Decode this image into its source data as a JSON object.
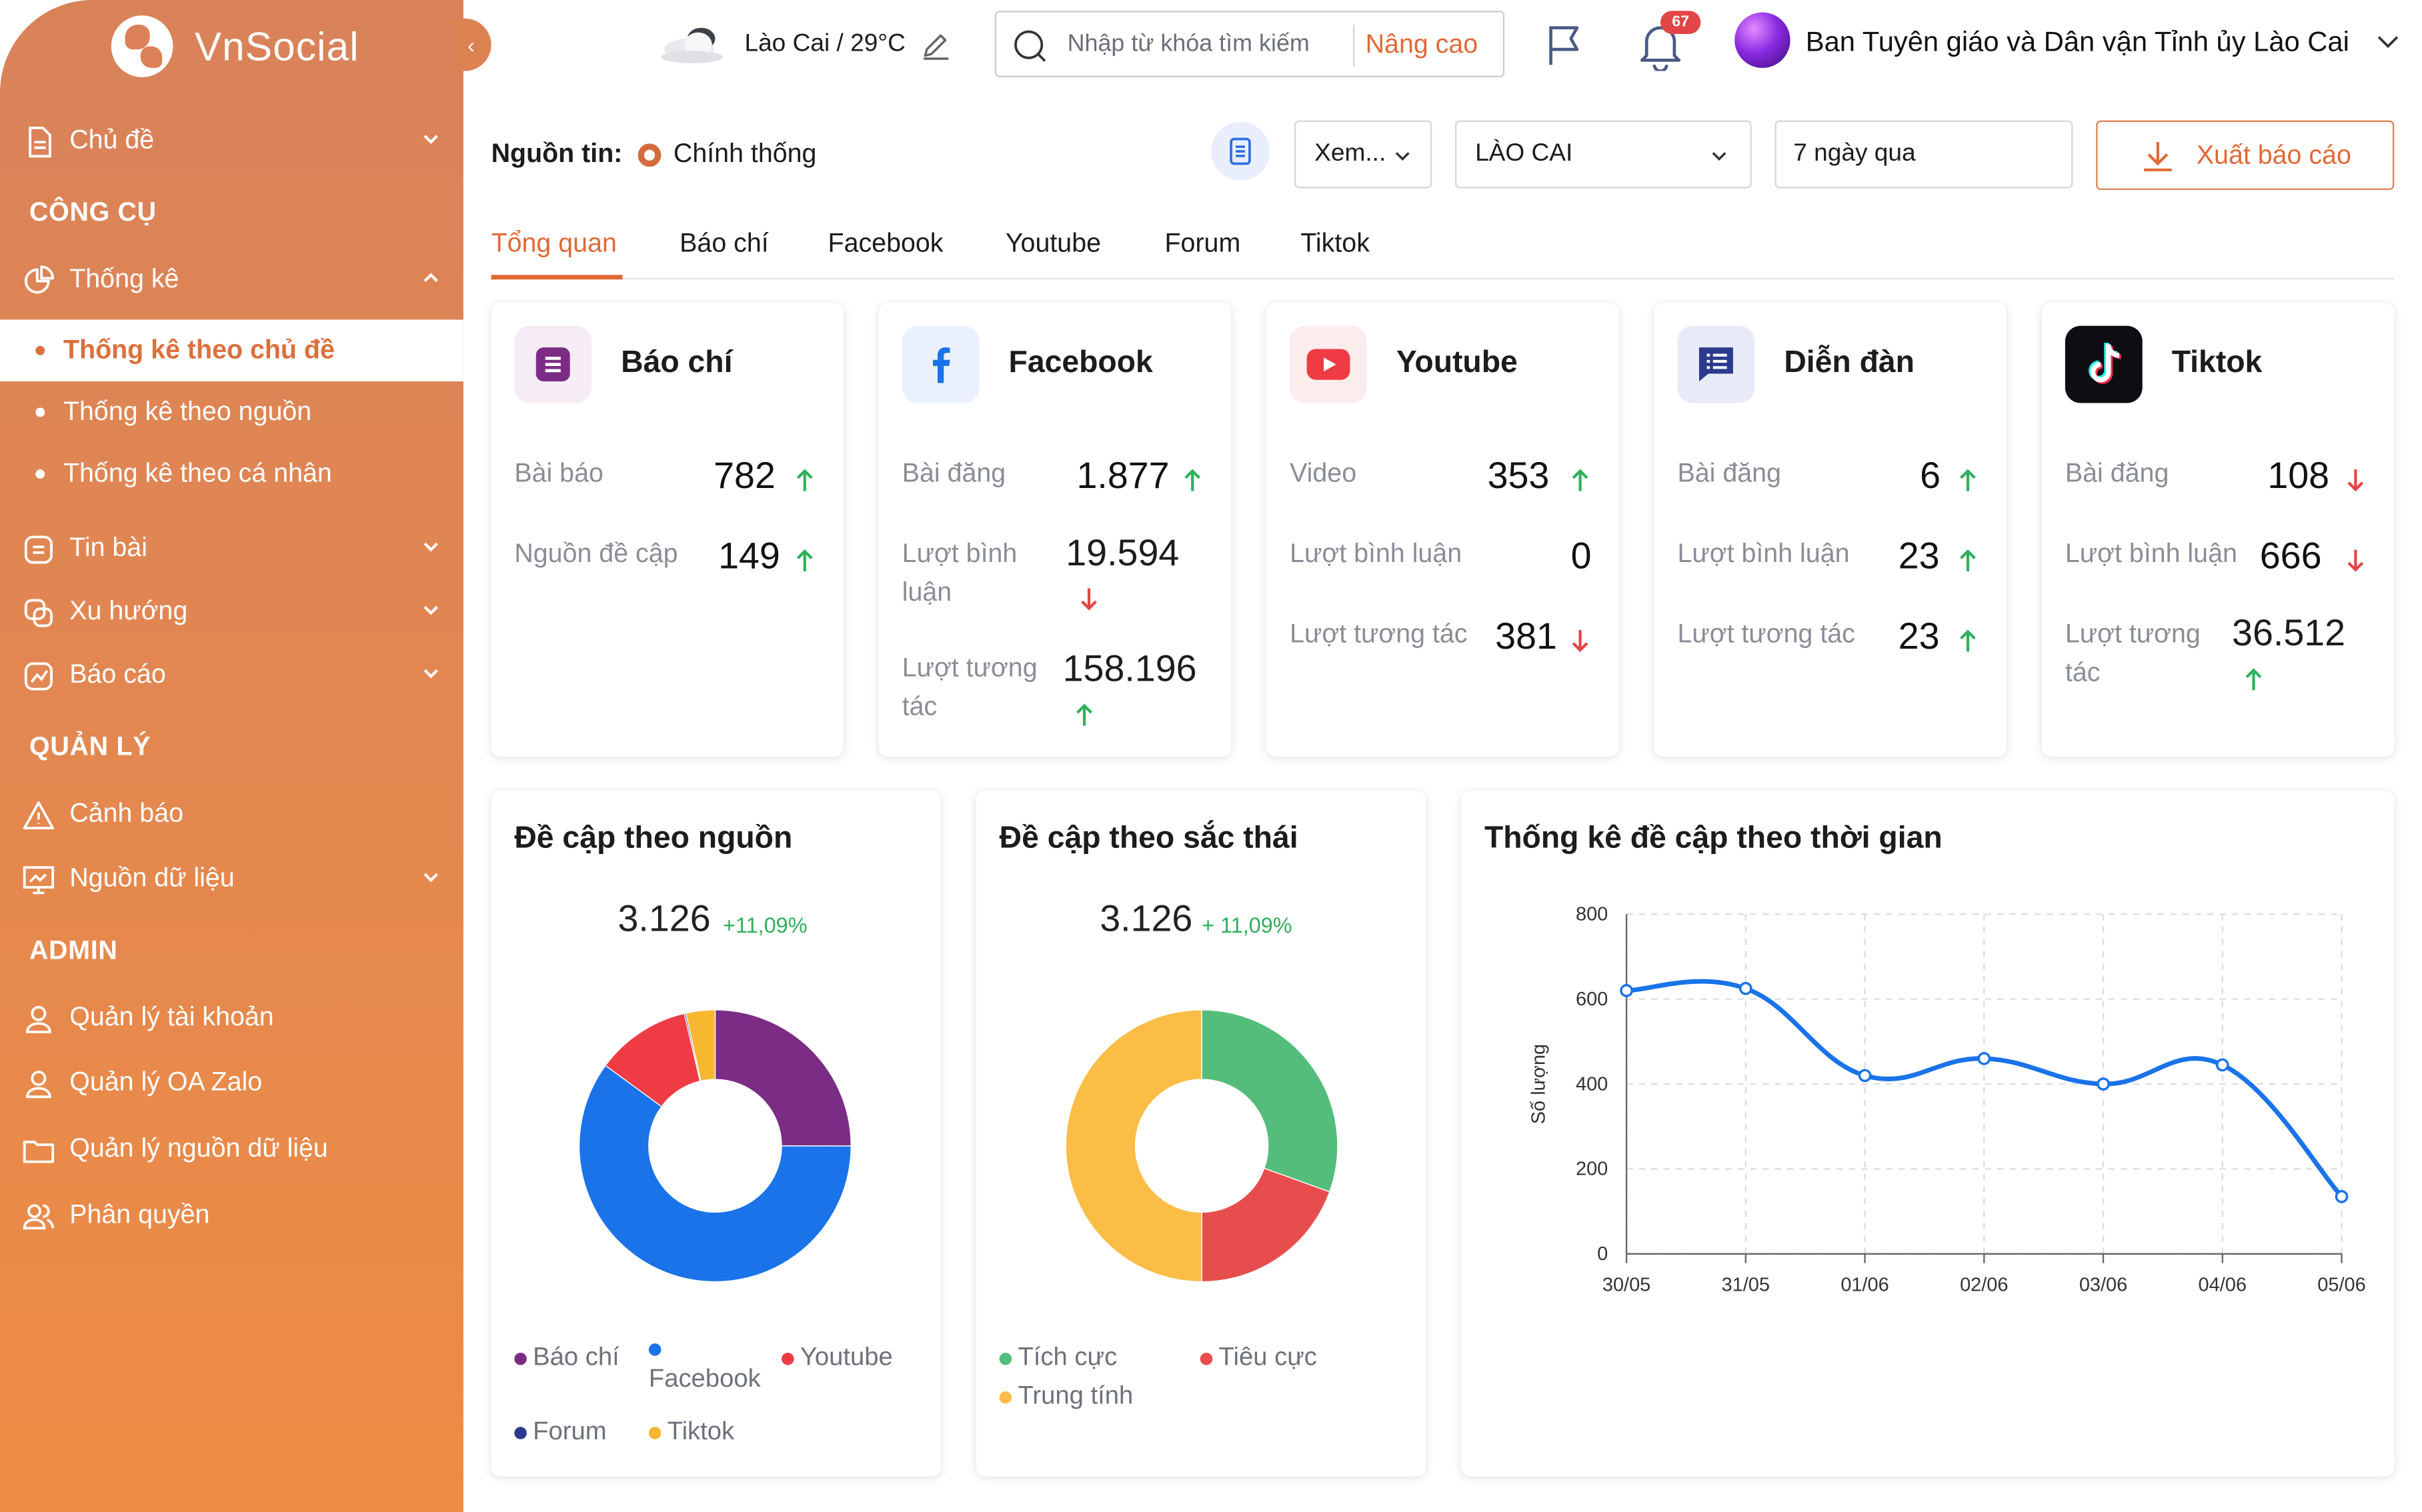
{
  "app": {
    "name": "VnSocial"
  },
  "sidebar": {
    "topics_label": "Chủ đề",
    "section_tools": "CÔNG CỤ",
    "stats_label": "Thống kê",
    "stats_sub": [
      "Thống kê theo chủ đề",
      "Thống kê theo nguồn",
      "Thống kê theo cá nhân"
    ],
    "news_label": "Tin bài",
    "trend_label": "Xu hướng",
    "report_label": "Báo cáo",
    "section_manage": "QUẢN LÝ",
    "alert_label": "Cảnh báo",
    "datasource_label": "Nguồn dữ liệu",
    "section_admin": "ADMIN",
    "admin_items": [
      "Quản lý tài khoản",
      "Quản lý OA Zalo",
      "Quản lý nguồn dữ liệu",
      "Phân quyền"
    ]
  },
  "header": {
    "weather": "Lào Cai / 29°C",
    "search_placeholder": "Nhập từ khóa tìm kiếm",
    "advanced_label": "Nâng cao",
    "notification_count": "67",
    "user_name": "Ban Tuyên giáo và Dân vận Tỉnh ủy Lào Cai"
  },
  "filters": {
    "source_label": "Nguồn tin:",
    "source_value": "Chính thống",
    "view_select": "Xem...",
    "region_select": "LÀO CAI",
    "period_select": "7 ngày qua",
    "export_label": "Xuất báo cáo"
  },
  "tabs": [
    "Tổng quan",
    "Báo chí",
    "Facebook",
    "Youtube",
    "Forum",
    "Tiktok"
  ],
  "platforms": [
    {
      "name": "Báo chí",
      "icon": "newspaper-icon",
      "stats": [
        {
          "label": "Bài báo",
          "value": "782",
          "trend": "up"
        },
        {
          "label": "Nguồn đề cập",
          "value": "149",
          "trend": "up"
        }
      ]
    },
    {
      "name": "Facebook",
      "icon": "facebook-icon",
      "stats": [
        {
          "label": "Bài đăng",
          "value": "1.877",
          "trend": "up"
        },
        {
          "label": "Lượt bình luận",
          "value": "19.594",
          "trend": "down"
        },
        {
          "label": "Lượt tương tác",
          "value": "158.196",
          "trend": "up"
        }
      ]
    },
    {
      "name": "Youtube",
      "icon": "youtube-icon",
      "stats": [
        {
          "label": "Video",
          "value": "353",
          "trend": "up"
        },
        {
          "label": "Lượt bình luận",
          "value": "0",
          "trend": "none"
        },
        {
          "label": "Lượt tương tác",
          "value": "381",
          "trend": "down"
        }
      ]
    },
    {
      "name": "Diễn đàn",
      "icon": "forum-icon",
      "stats": [
        {
          "label": "Bài đăng",
          "value": "6",
          "trend": "up"
        },
        {
          "label": "Lượt bình luận",
          "value": "23",
          "trend": "up"
        },
        {
          "label": "Lượt tương tác",
          "value": "23",
          "trend": "up"
        }
      ]
    },
    {
      "name": "Tiktok",
      "icon": "tiktok-icon",
      "stats": [
        {
          "label": "Bài đăng",
          "value": "108",
          "trend": "down"
        },
        {
          "label": "Lượt bình luận",
          "value": "666",
          "trend": "down"
        },
        {
          "label": "Lượt tương tác",
          "value": "36.512",
          "trend": "up"
        }
      ]
    }
  ],
  "colors": {
    "accent": "#e06a36",
    "up": "#2fb05b",
    "down": "#e24545"
  },
  "chart_data": [
    {
      "type": "pie",
      "title": "Đề cập theo nguồn",
      "total": "3.126",
      "growth": "+11,09%",
      "donut": true,
      "slices": [
        {
          "name": "Báo chí",
          "value": 782,
          "color": "#7b2d86"
        },
        {
          "name": "Facebook",
          "value": 1877,
          "color": "#1a73e8"
        },
        {
          "name": "Youtube",
          "value": 353,
          "color": "#ef3b43"
        },
        {
          "name": "Forum",
          "value": 6,
          "color": "#2b3a8c"
        },
        {
          "name": "Tiktok",
          "value": 108,
          "color": "#f7b731"
        }
      ]
    },
    {
      "type": "pie",
      "title": "Đề cập theo sắc thái",
      "total": "3.126",
      "growth": "+ 11,09%",
      "donut": true,
      "slices": [
        {
          "name": "Tích cực",
          "value": 30.5,
          "color": "#55bd7b"
        },
        {
          "name": "Tiêu cực",
          "value": 19.5,
          "color": "#e84d4d"
        },
        {
          "name": "Trung tính",
          "value": 50,
          "color": "#fbbd45"
        }
      ]
    },
    {
      "type": "line",
      "title": "Thống kê đề cập theo thời gian",
      "ylabel": "Số lượng",
      "xlabel": "",
      "x": [
        "30/05",
        "31/05",
        "01/06",
        "02/06",
        "03/06",
        "04/06",
        "05/06"
      ],
      "series": [
        {
          "values": [
            620,
            625,
            420,
            460,
            400,
            445,
            135
          ],
          "color": "#1a73e8"
        }
      ],
      "ylim": [
        0,
        800
      ],
      "yticks": [
        0,
        200,
        400,
        600,
        800
      ],
      "grid": true
    }
  ]
}
